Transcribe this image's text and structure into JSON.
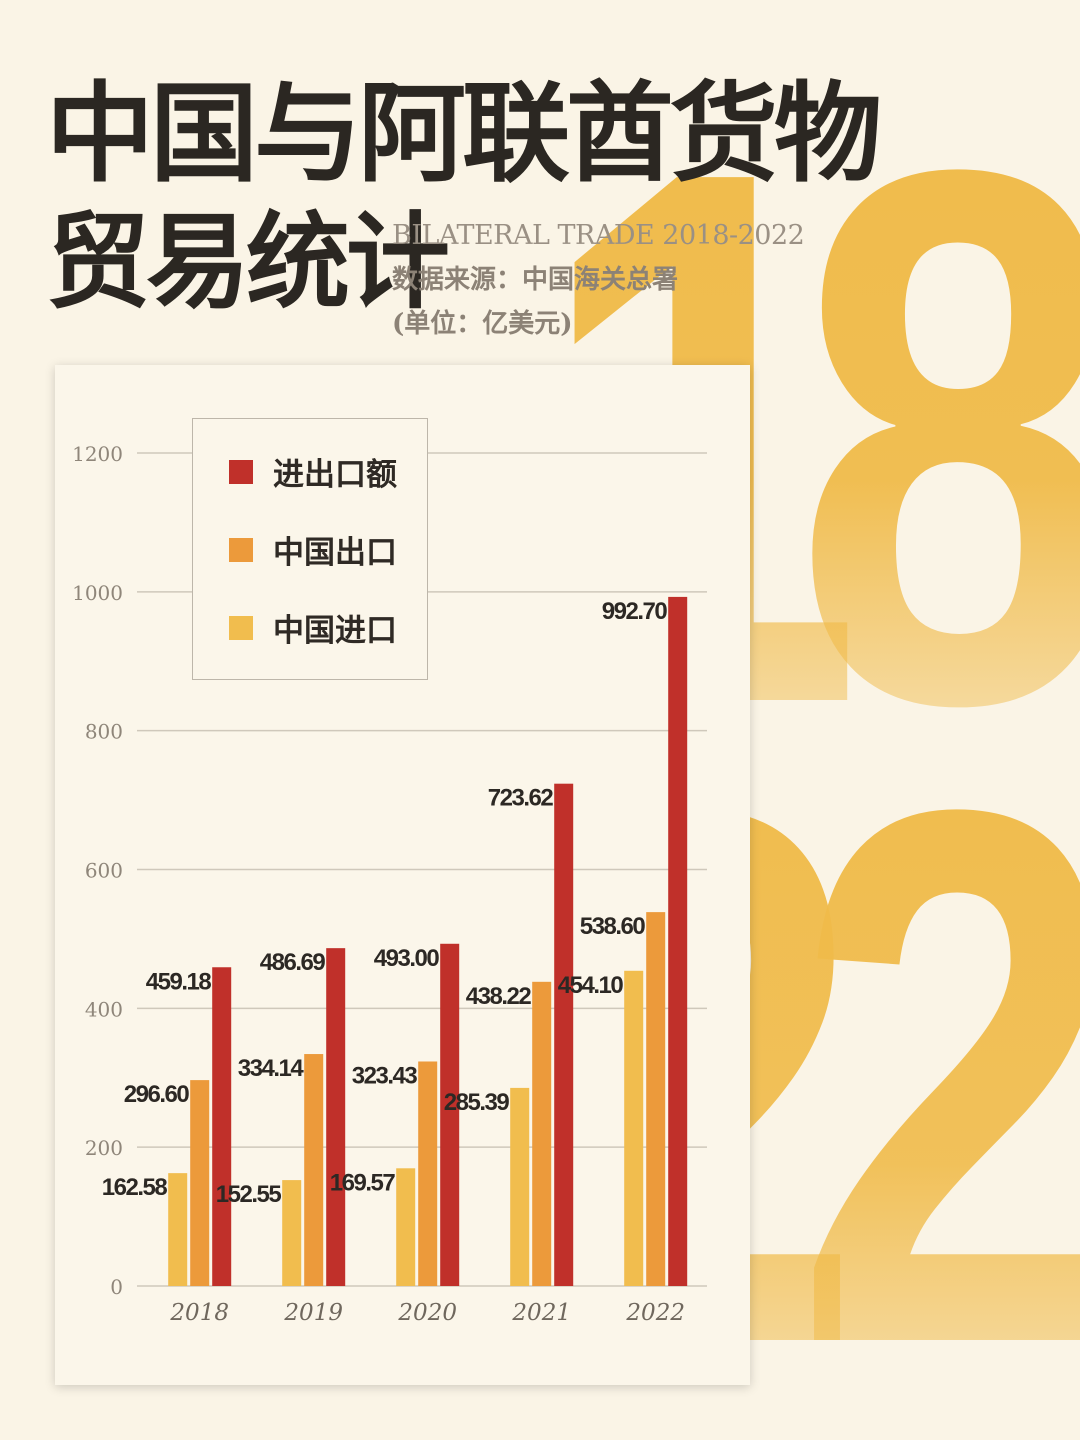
{
  "header": {
    "title_line1": "中国与阿联酋货物",
    "title_line2": "贸易统计",
    "subtitle_en": "BILATERAL TRADE 2018-2022",
    "source": "数据来源：中国海关总署",
    "unit": "(单位：亿美元)"
  },
  "background": {
    "year_start_digits": "18",
    "year_end_digits": "22",
    "color": "#f0bb4a"
  },
  "colors": {
    "total": "#c0302a",
    "export": "#ec9a3b",
    "import": "#f1bd4e",
    "axis_text": "#8f867a",
    "label_text": "#2c2824",
    "grid": "#cfc8bb"
  },
  "chart_data": {
    "type": "bar",
    "title": "",
    "xlabel": "",
    "ylabel": "",
    "ylim": [
      0,
      1200
    ],
    "yticks": [
      0,
      200,
      400,
      600,
      800,
      1000,
      1200
    ],
    "grid": true,
    "legend_position": "top-left",
    "categories": [
      "2018",
      "2019",
      "2020",
      "2021",
      "2022"
    ],
    "series": [
      {
        "name": "中国进口",
        "key": "import",
        "values": [
          162.58,
          152.55,
          169.57,
          285.39,
          454.1
        ],
        "labels": [
          "162.58",
          "152.55",
          "169.57",
          "285.39",
          "454.10"
        ]
      },
      {
        "name": "中国出口",
        "key": "export",
        "values": [
          296.6,
          334.14,
          323.43,
          438.22,
          538.6
        ],
        "labels": [
          "296.60",
          "334.14",
          "323.43",
          "438.22",
          "538.60"
        ]
      },
      {
        "name": "进出口额",
        "key": "total",
        "values": [
          459.18,
          486.69,
          493.0,
          723.62,
          992.7
        ],
        "labels": [
          "459.18",
          "486.69",
          "493.00",
          "723.62",
          "992.70"
        ]
      }
    ],
    "legend": [
      "进出口额",
      "中国出口",
      "中国进口"
    ]
  }
}
